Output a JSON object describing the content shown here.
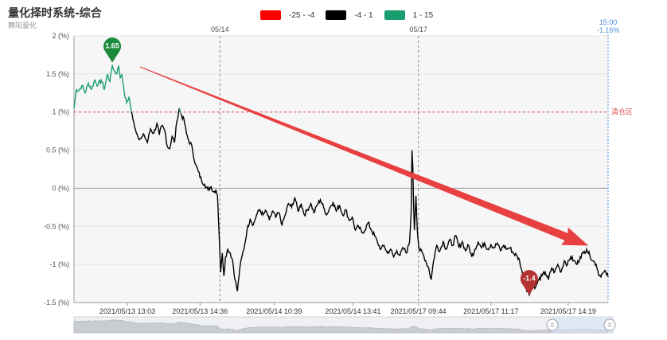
{
  "header": {
    "title": "量化择时系统-综合",
    "subtitle": "舞阳量化"
  },
  "legend": [
    {
      "label": "-25 - -4",
      "color": "#ff0000"
    },
    {
      "label": "-4 - 1",
      "color": "#000000"
    },
    {
      "label": "1 - 15",
      "color": "#1a9e6e"
    }
  ],
  "chart_data": {
    "type": "line",
    "x_ticks": [
      "2021/05/13 13:03",
      "2021/05/13 14:36",
      "2021/05/14 10:39",
      "2021/05/14 13:41",
      "2021/05/17 09:44",
      "2021/05/17 11:17",
      "2021/05/17 14:19"
    ],
    "day_labels": [
      "05/14",
      "05/17"
    ],
    "y_ticks": [
      "2 (%)",
      "1.5 (%)",
      "1 (%)",
      "0.5 (%)",
      "0 (%)",
      "-0.5 (%)",
      "-1 (%)",
      "-1.5 (%)"
    ],
    "ylim": [
      -1.5,
      2
    ],
    "threshold": {
      "value": 1,
      "label": "清仓区"
    },
    "current": {
      "time": "15:00",
      "value": "-1.16%"
    },
    "max_marker": {
      "label": "1.65",
      "value": 1.65
    },
    "min_marker": {
      "label": "-1.4",
      "value": -1.4
    },
    "series_keypoints": [
      [
        0,
        1.05
      ],
      [
        3,
        1.3
      ],
      [
        6,
        1.28
      ],
      [
        10,
        1.35
      ],
      [
        14,
        1.25
      ],
      [
        18,
        1.38
      ],
      [
        22,
        1.3
      ],
      [
        26,
        1.42
      ],
      [
        30,
        1.35
      ],
      [
        34,
        1.42
      ],
      [
        38,
        1.3
      ],
      [
        42,
        1.5
      ],
      [
        45,
        1.4
      ],
      [
        48,
        1.62
      ],
      [
        50,
        1.55
      ],
      [
        53,
        1.5
      ],
      [
        56,
        1.6
      ],
      [
        58,
        1.45
      ],
      [
        60,
        1.5
      ],
      [
        63,
        1.25
      ],
      [
        66,
        1.12
      ],
      [
        69,
        1.2
      ],
      [
        72,
        1.0
      ],
      [
        74,
        0.9
      ],
      [
        77,
        0.78
      ],
      [
        80,
        0.68
      ],
      [
        84,
        0.65
      ],
      [
        88,
        0.7
      ],
      [
        92,
        0.6
      ],
      [
        96,
        0.78
      ],
      [
        100,
        0.72
      ],
      [
        104,
        0.85
      ],
      [
        107,
        0.7
      ],
      [
        110,
        0.82
      ],
      [
        114,
        0.75
      ],
      [
        117,
        0.55
      ],
      [
        120,
        0.52
      ],
      [
        123,
        0.68
      ],
      [
        126,
        0.6
      ],
      [
        129,
        0.88
      ],
      [
        132,
        1.05
      ],
      [
        135,
        0.95
      ],
      [
        138,
        0.9
      ],
      [
        141,
        0.72
      ],
      [
        144,
        0.62
      ],
      [
        148,
        0.55
      ],
      [
        152,
        0.32
      ],
      [
        156,
        0.22
      ],
      [
        160,
        0.1
      ],
      [
        164,
        0.05
      ],
      [
        168,
        -0.02
      ],
      [
        172,
        0.02
      ],
      [
        175,
        -0.05
      ],
      [
        178,
        -0.02
      ],
      [
        180,
        -0.1
      ],
      [
        182,
        -0.6
      ],
      [
        184,
        -1.1
      ],
      [
        186,
        -0.85
      ],
      [
        188,
        -1.15
      ],
      [
        190,
        -0.9
      ],
      [
        193,
        -0.8
      ],
      [
        196,
        -0.85
      ],
      [
        199,
        -0.95
      ],
      [
        202,
        -1.2
      ],
      [
        205,
        -1.35
      ],
      [
        208,
        -1.05
      ],
      [
        211,
        -0.88
      ],
      [
        214,
        -0.75
      ],
      [
        217,
        -0.55
      ],
      [
        221,
        -0.4
      ],
      [
        225,
        -0.48
      ],
      [
        229,
        -0.35
      ],
      [
        233,
        -0.28
      ],
      [
        237,
        -0.35
      ],
      [
        241,
        -0.3
      ],
      [
        245,
        -0.42
      ],
      [
        249,
        -0.3
      ],
      [
        253,
        -0.38
      ],
      [
        257,
        -0.32
      ],
      [
        261,
        -0.48
      ],
      [
        265,
        -0.35
      ],
      [
        269,
        -0.2
      ],
      [
        273,
        -0.25
      ],
      [
        277,
        -0.12
      ],
      [
        281,
        -0.3
      ],
      [
        285,
        -0.2
      ],
      [
        289,
        -0.35
      ],
      [
        293,
        -0.28
      ],
      [
        297,
        -0.2
      ],
      [
        301,
        -0.32
      ],
      [
        305,
        -0.22
      ],
      [
        309,
        -0.15
      ],
      [
        313,
        -0.25
      ],
      [
        317,
        -0.35
      ],
      [
        321,
        -0.25
      ],
      [
        325,
        -0.18
      ],
      [
        329,
        -0.3
      ],
      [
        333,
        -0.22
      ],
      [
        337,
        -0.35
      ],
      [
        341,
        -0.28
      ],
      [
        345,
        -0.42
      ],
      [
        349,
        -0.38
      ],
      [
        353,
        -0.55
      ],
      [
        357,
        -0.5
      ],
      [
        361,
        -0.58
      ],
      [
        365,
        -0.55
      ],
      [
        369,
        -0.45
      ],
      [
        373,
        -0.55
      ],
      [
        377,
        -0.62
      ],
      [
        381,
        -0.72
      ],
      [
        385,
        -0.8
      ],
      [
        389,
        -0.75
      ],
      [
        393,
        -0.85
      ],
      [
        397,
        -0.8
      ],
      [
        401,
        -0.9
      ],
      [
        405,
        -0.82
      ],
      [
        409,
        -0.88
      ],
      [
        413,
        -0.78
      ],
      [
        417,
        -0.85
      ],
      [
        421,
        -0.7
      ],
      [
        423,
        -0.3
      ],
      [
        424,
        0.5
      ],
      [
        425,
        0.3
      ],
      [
        426,
        -0.2
      ],
      [
        427,
        -0.55
      ],
      [
        429,
        -0.1
      ],
      [
        431,
        -0.6
      ],
      [
        433,
        -0.8
      ],
      [
        437,
        -0.85
      ],
      [
        441,
        -0.95
      ],
      [
        445,
        -1.05
      ],
      [
        448,
        -1.2
      ],
      [
        451,
        -0.95
      ],
      [
        455,
        -0.75
      ],
      [
        459,
        -0.82
      ],
      [
        463,
        -0.7
      ],
      [
        467,
        -0.8
      ],
      [
        471,
        -0.68
      ],
      [
        475,
        -0.75
      ],
      [
        479,
        -0.62
      ],
      [
        483,
        -0.78
      ],
      [
        487,
        -0.7
      ],
      [
        491,
        -0.82
      ],
      [
        495,
        -0.75
      ],
      [
        499,
        -0.9
      ],
      [
        503,
        -0.8
      ],
      [
        507,
        -0.7
      ],
      [
        511,
        -0.78
      ],
      [
        515,
        -0.72
      ],
      [
        519,
        -0.8
      ],
      [
        523,
        -0.74
      ],
      [
        527,
        -0.78
      ],
      [
        531,
        -0.72
      ],
      [
        535,
        -0.82
      ],
      [
        539,
        -0.75
      ],
      [
        543,
        -0.8
      ],
      [
        547,
        -0.78
      ],
      [
        551,
        -0.85
      ],
      [
        555,
        -0.88
      ],
      [
        559,
        -0.95
      ],
      [
        563,
        -1.15
      ],
      [
        567,
        -1.3
      ],
      [
        571,
        -1.4
      ],
      [
        575,
        -1.25
      ],
      [
        579,
        -1.3
      ],
      [
        583,
        -1.2
      ],
      [
        587,
        -1.15
      ],
      [
        591,
        -1.1
      ],
      [
        595,
        -1.2
      ],
      [
        599,
        -1.05
      ],
      [
        603,
        -1.1
      ],
      [
        607,
        -1.0
      ],
      [
        611,
        -1.1
      ],
      [
        615,
        -0.95
      ],
      [
        619,
        -1.0
      ],
      [
        623,
        -0.9
      ],
      [
        627,
        -0.95
      ],
      [
        631,
        -1.0
      ],
      [
        635,
        -0.9
      ],
      [
        639,
        -0.85
      ],
      [
        643,
        -0.8
      ],
      [
        647,
        -0.88
      ],
      [
        651,
        -0.95
      ],
      [
        655,
        -1.0
      ],
      [
        659,
        -1.15
      ],
      [
        663,
        -1.12
      ],
      [
        667,
        -1.1
      ],
      [
        670,
        -1.16
      ]
    ],
    "n_points": 671,
    "axis_index_of_x_ticks": [
      67,
      158,
      251,
      350,
      432,
      523,
      620
    ],
    "axis_index_of_day_breaks": [
      183,
      432
    ]
  },
  "navigator": {
    "left_handle": "=",
    "right_handle": "="
  },
  "annotation": {
    "color": "#e84040"
  }
}
